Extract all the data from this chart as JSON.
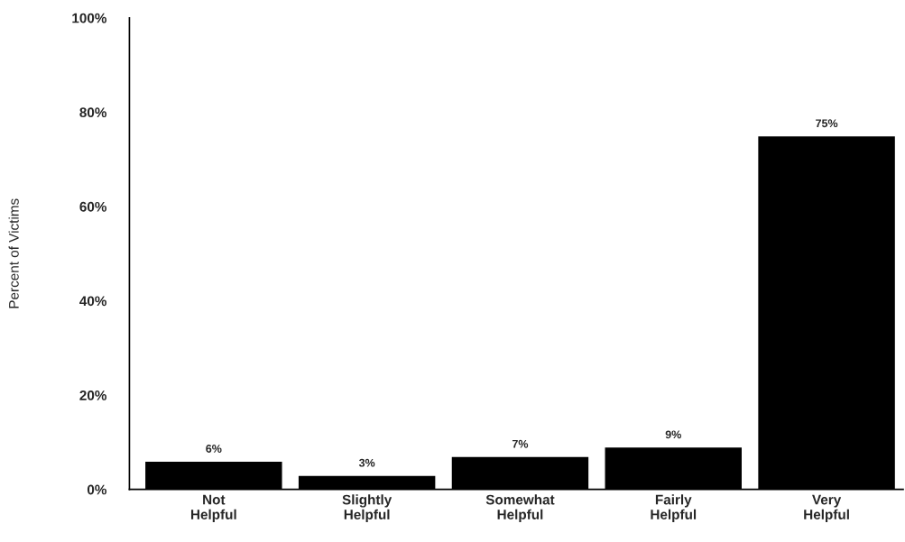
{
  "chart_data": {
    "type": "bar",
    "ylabel": "Percent of Victims",
    "categories": [
      "Not\nHelpful",
      "Slightly\nHelpful",
      "Somewhat\nHelpful",
      "Fairly\nHelpful",
      "Very\nHelpful"
    ],
    "values": [
      6,
      3,
      7,
      9,
      75
    ],
    "color": "#000000",
    "value_labels": [
      "6%",
      "3%",
      "7%",
      "9%",
      "75%"
    ],
    "ylim": [
      0,
      100
    ],
    "yticks": [
      {
        "value": 0,
        "label": "0%"
      },
      {
        "value": 20,
        "label": "20%"
      },
      {
        "value": 40,
        "label": "40%"
      },
      {
        "value": 60,
        "label": "60%"
      },
      {
        "value": 80,
        "label": "80%"
      },
      {
        "value": 100,
        "label": "100%"
      }
    ],
    "grid": false,
    "legend": false
  }
}
